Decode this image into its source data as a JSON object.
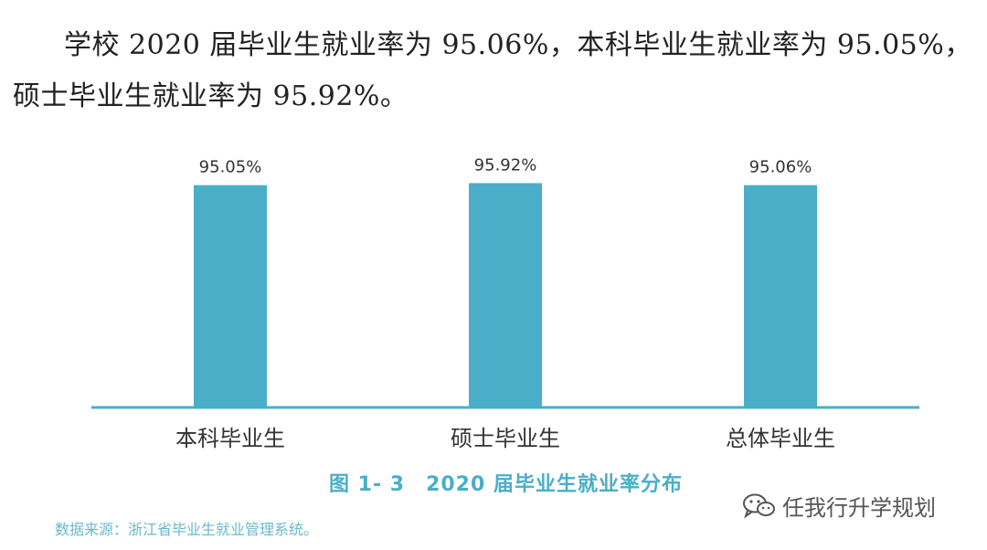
{
  "text": {
    "paragraph": "学校 2020 届毕业生就业率为 95.06%，本科毕业生就业率为 95.05%，硕士毕业生就业率为 95.92%。",
    "source": "数据来源：浙江省毕业生就业管理系统。",
    "watermark": "任我行升学规划"
  },
  "colors": {
    "bar": "#4aaec8",
    "axis": "#4aaec8",
    "caption": "#4aaec8"
  },
  "icons": {
    "watermark": "wechat-icon"
  },
  "chart_data": {
    "type": "bar",
    "title": "图 1- 3　2020 届毕业生就业率分布",
    "categories": [
      "本科毕业生",
      "硕士毕业生",
      "总体毕业生"
    ],
    "values": [
      95.05,
      95.92,
      95.06
    ],
    "data_labels": [
      "95.05%",
      "95.92%",
      "95.06%"
    ],
    "xlabel": "",
    "ylabel": "",
    "ylim": [
      0,
      100
    ],
    "grid": false,
    "legend": "none"
  }
}
